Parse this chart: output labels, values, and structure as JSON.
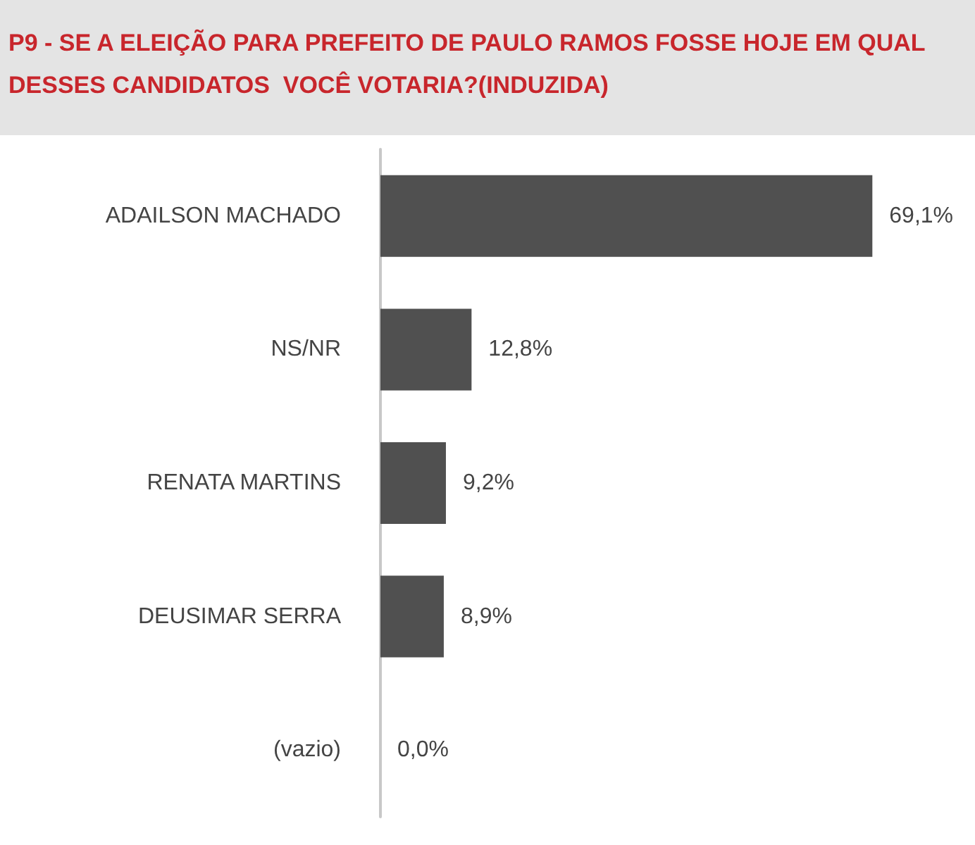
{
  "chart_data": {
    "type": "bar",
    "orientation": "horizontal",
    "title": "P9 - SE A ELEIÇÃO PARA PREFEITO DE PAULO RAMOS FOSSE HOJE EM QUAL DESSES CANDIDATOS  VOCÊ VOTARIA?(INDUZIDA)",
    "categories": [
      "ADAILSON MACHADO",
      "NS/NR",
      "RENATA MARTINS",
      "DEUSIMAR SERRA",
      "(vazio)"
    ],
    "values": [
      69.1,
      12.8,
      9.2,
      8.9,
      0.0
    ],
    "value_labels": [
      "69,1%",
      "12,8%",
      "9,2%",
      "8,9%",
      "0,0%"
    ],
    "color": "#505050"
  }
}
